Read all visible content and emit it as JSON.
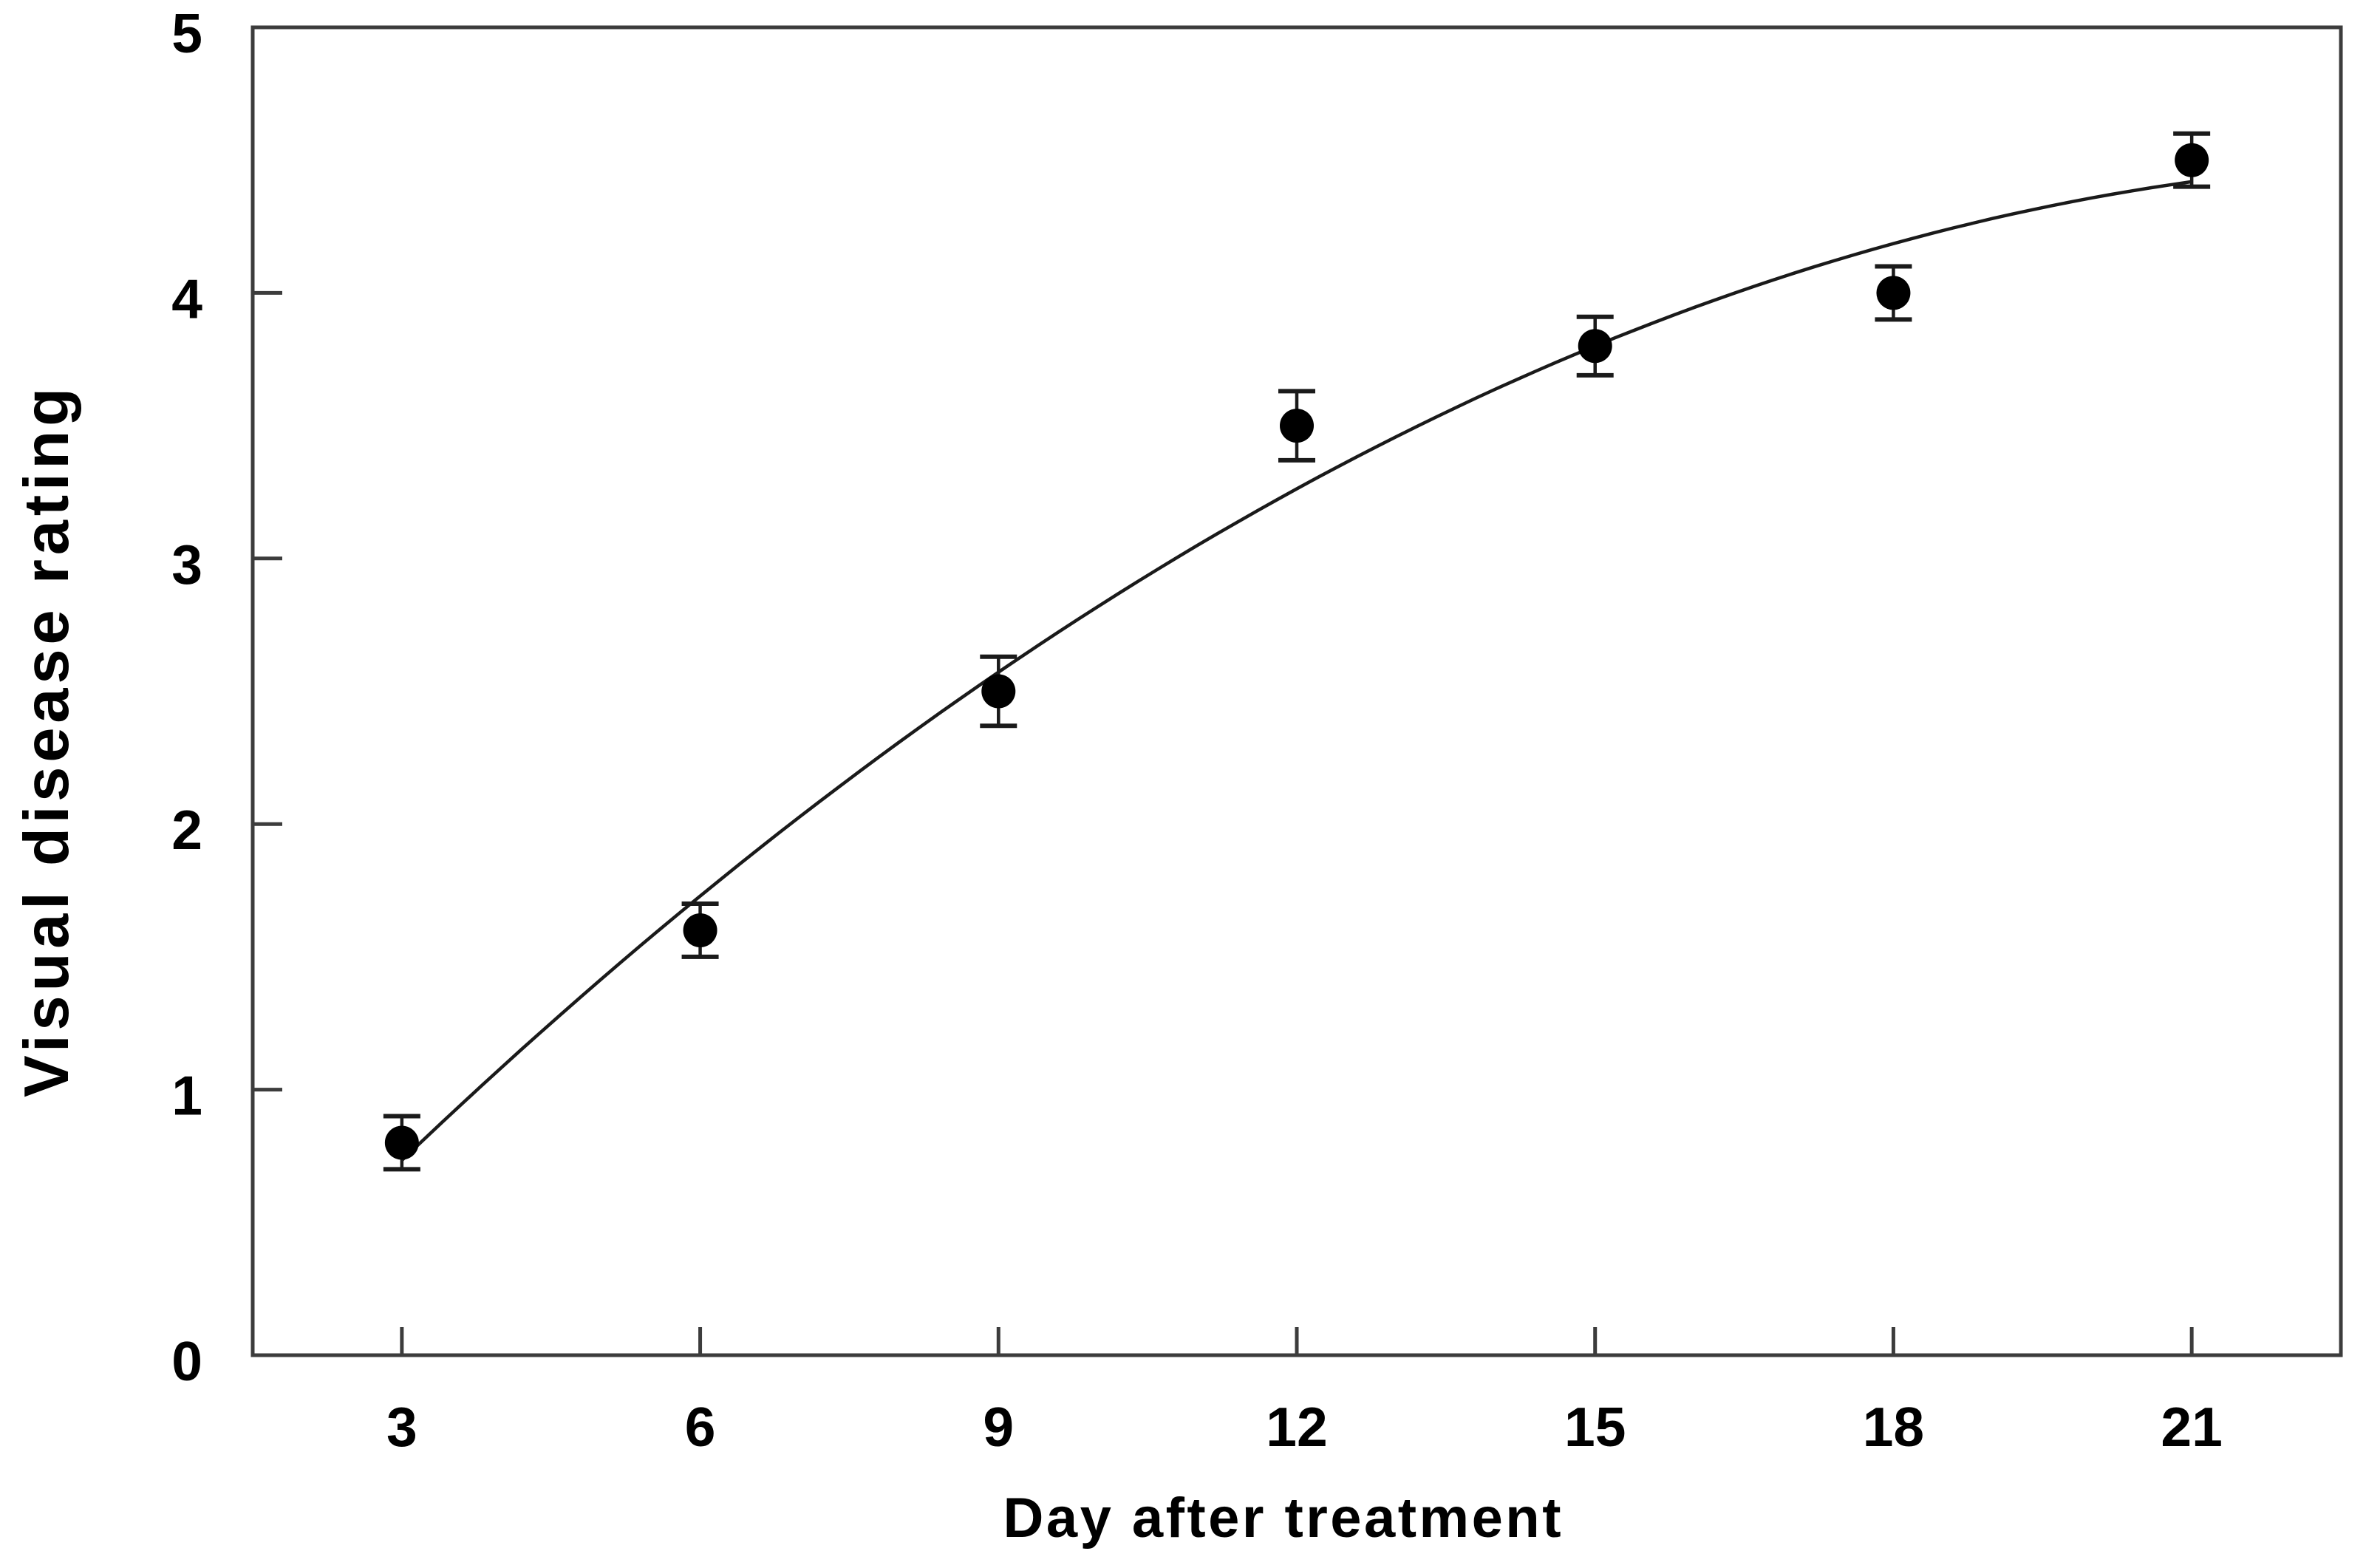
{
  "figure": {
    "background": "#ffffff",
    "axis_color": "#3c3c3c",
    "text_color": "#000000",
    "marker_color": "#000000",
    "curve_color": "#1a1a1a"
  },
  "chart_data": {
    "type": "scatter",
    "title": "",
    "xlabel": "Day after treatment",
    "ylabel": "Visual disease rating",
    "x": [
      3,
      6,
      9,
      12,
      15,
      18,
      21
    ],
    "y": [
      0.8,
      1.6,
      2.5,
      3.5,
      3.8,
      4.0,
      4.5
    ],
    "yerr": [
      0.1,
      0.1,
      0.13,
      0.13,
      0.11,
      0.1,
      0.1
    ],
    "xticks": [
      3,
      6,
      9,
      12,
      15,
      18,
      21
    ],
    "yticks": [
      0,
      1,
      2,
      3,
      4,
      5
    ],
    "xlim": [
      1.5,
      22.5
    ],
    "ylim": [
      0,
      5
    ],
    "grid": false,
    "legend": null,
    "marker": "filled-circle",
    "fit_curve": {
      "type": "quadratic",
      "coefficients": {
        "a": -0.414,
        "b": 0.408,
        "c": -0.00847
      },
      "x_range": [
        3,
        21
      ]
    }
  }
}
